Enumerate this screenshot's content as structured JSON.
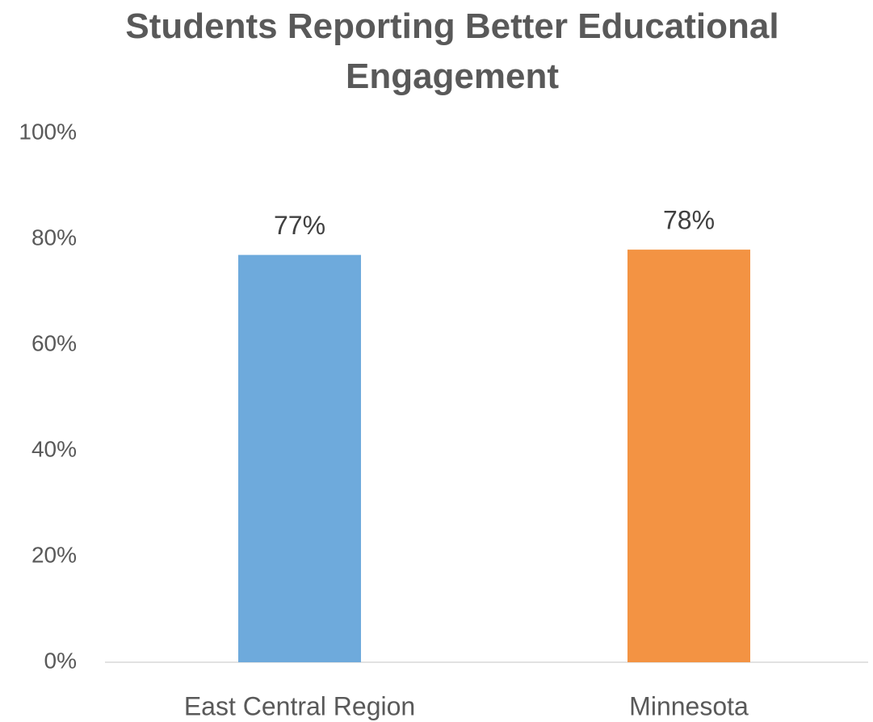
{
  "chart_data": {
    "type": "bar",
    "title": "Students Reporting Better Educational Engagement",
    "categories": [
      "East Central Region",
      "Minnesota"
    ],
    "values": [
      77,
      78
    ],
    "value_labels": [
      "77%",
      "78%"
    ],
    "colors": [
      "#6eaadc",
      "#f39343"
    ],
    "ylim": [
      0,
      100
    ],
    "yticks": [
      {
        "value": 0,
        "label": "0%"
      },
      {
        "value": 20,
        "label": "20%"
      },
      {
        "value": 40,
        "label": "40%"
      },
      {
        "value": 60,
        "label": "60%"
      },
      {
        "value": 80,
        "label": "80%"
      },
      {
        "value": 100,
        "label": "100%"
      }
    ],
    "grid": false
  }
}
